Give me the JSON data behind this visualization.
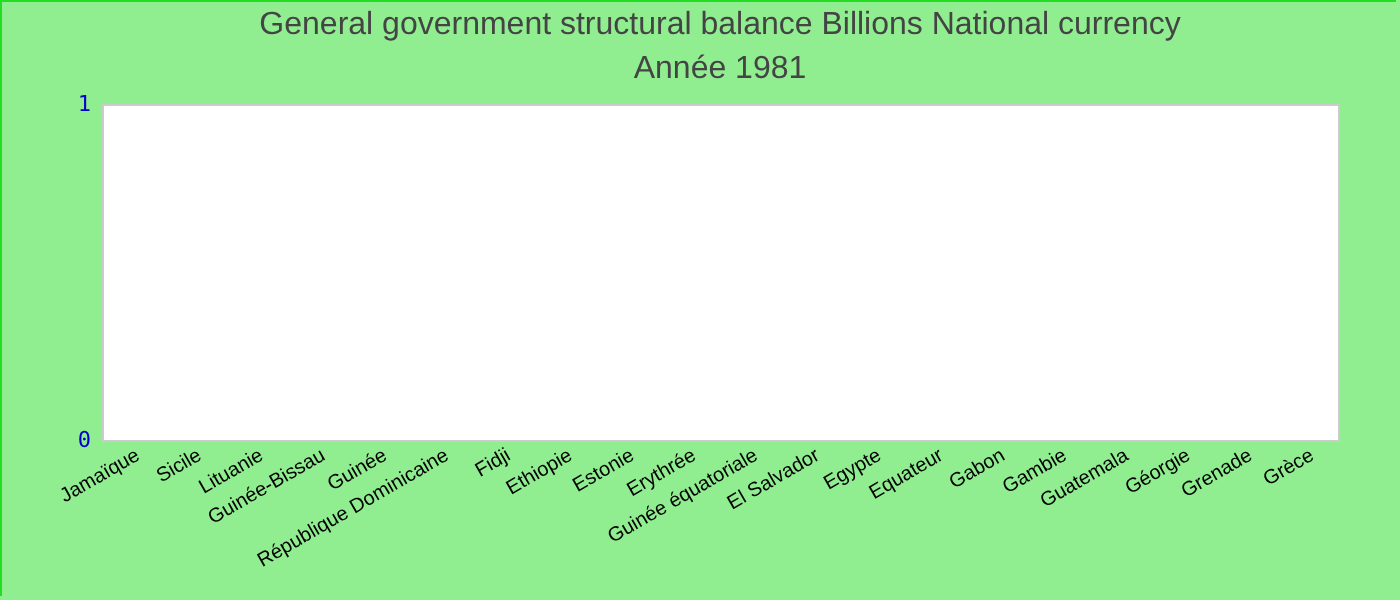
{
  "chart_data": {
    "type": "bar",
    "title": "General government structural balance Billions National currency",
    "subtitle": "Année 1981",
    "categories": [
      "Jamaïque",
      "Sicile",
      "Lituanie",
      "Guinée-Bissau",
      "Guinée",
      "République Dominicaine",
      "Fidji",
      "Ethiopie",
      "Estonie",
      "Erythrée",
      "Guinée équatoriale",
      "El Salvador",
      "Egypte",
      "Equateur",
      "Gabon",
      "Gambie",
      "Guatemala",
      "Géorgie",
      "Grenade",
      "Grèce"
    ],
    "values": [
      null,
      null,
      null,
      null,
      null,
      null,
      null,
      null,
      null,
      null,
      null,
      null,
      null,
      null,
      null,
      null,
      null,
      null,
      null,
      null
    ],
    "ylim": [
      0,
      1
    ],
    "yticks": [
      0,
      1
    ]
  }
}
